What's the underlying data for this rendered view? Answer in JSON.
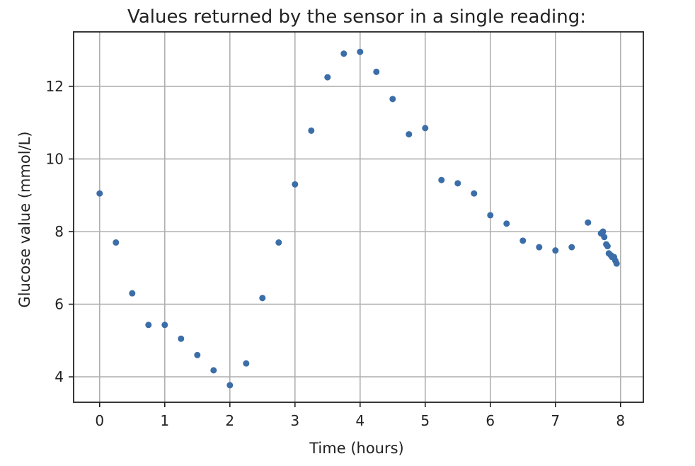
{
  "chart_data": {
    "type": "scatter",
    "title": "Values returned by the sensor in a single reading:",
    "xlabel": "Time (hours)",
    "ylabel": "Glucose value (mmol/L)",
    "xlim": [
      -0.4,
      8.35
    ],
    "ylim": [
      3.3,
      13.5
    ],
    "xticks": [
      0,
      1,
      2,
      3,
      4,
      5,
      6,
      7,
      8
    ],
    "xtick_labels": [
      "0",
      "1",
      "2",
      "3",
      "4",
      "5",
      "6",
      "7",
      "8"
    ],
    "yticks": [
      4,
      6,
      8,
      10,
      12
    ],
    "ytick_labels": [
      "4",
      "6",
      "8",
      "10",
      "12"
    ],
    "grid": true,
    "color": "#3b6ea8",
    "series": [
      {
        "x": [
          0,
          0.25,
          0.5,
          0.75,
          1.0,
          1.25,
          1.5,
          1.75,
          2.0,
          2.25,
          2.5,
          2.75,
          3.0,
          3.25,
          3.5,
          3.75,
          4.0,
          4.25,
          4.5,
          4.75,
          5.0,
          5.25,
          5.5,
          5.75,
          6.0,
          6.25,
          6.5,
          6.75,
          7.0,
          7.25,
          7.5,
          7.7,
          7.73,
          7.75,
          7.78,
          7.8,
          7.82,
          7.85,
          7.87,
          7.9,
          7.92,
          7.94
        ],
        "y": [
          9.05,
          7.7,
          6.3,
          5.43,
          5.43,
          5.05,
          4.6,
          4.18,
          3.77,
          4.37,
          6.17,
          7.7,
          9.3,
          10.78,
          12.25,
          12.9,
          12.95,
          12.4,
          11.65,
          10.68,
          10.85,
          9.42,
          9.33,
          9.05,
          8.45,
          8.22,
          7.75,
          7.57,
          7.48,
          7.57,
          8.25,
          7.95,
          8.0,
          7.85,
          7.65,
          7.6,
          7.4,
          7.35,
          7.3,
          7.3,
          7.2,
          7.12
        ]
      }
    ]
  }
}
